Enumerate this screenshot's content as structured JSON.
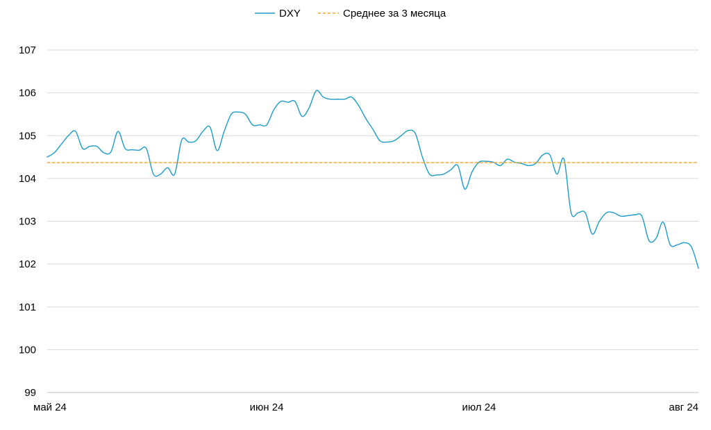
{
  "chart_data": {
    "type": "line",
    "title": "",
    "xlabel": "",
    "ylabel": "",
    "ylim": [
      99,
      107
    ],
    "y_ticks": [
      "99",
      "100",
      "101",
      "102",
      "103",
      "104",
      "105",
      "106",
      "107"
    ],
    "x_range": [
      "2024-05-01",
      "2024-08-01"
    ],
    "x_ticks": [
      {
        "date": "2024-05-01",
        "label": "май 24"
      },
      {
        "date": "2024-06-01",
        "label": "июн 24"
      },
      {
        "date": "2024-07-01",
        "label": "июл 24"
      },
      {
        "date": "2024-08-01",
        "label": "авг 24"
      }
    ],
    "grid": "horizontal",
    "legend": "top-center",
    "series": [
      {
        "name": "DXY",
        "color": "#1A9BC9",
        "style": "solid",
        "points": [
          [
            "2024-05-01",
            104.5
          ],
          [
            "2024-05-02",
            104.6
          ],
          [
            "2024-05-03",
            104.8
          ],
          [
            "2024-05-04",
            105.0
          ],
          [
            "2024-05-05",
            105.1
          ],
          [
            "2024-05-06",
            104.7
          ],
          [
            "2024-05-07",
            104.75
          ],
          [
            "2024-05-08",
            104.75
          ],
          [
            "2024-05-09",
            104.6
          ],
          [
            "2024-05-10",
            104.62
          ],
          [
            "2024-05-11",
            105.1
          ],
          [
            "2024-05-12",
            104.7
          ],
          [
            "2024-05-13",
            104.67
          ],
          [
            "2024-05-14",
            104.66
          ],
          [
            "2024-05-15",
            104.7
          ],
          [
            "2024-05-16",
            104.1
          ],
          [
            "2024-05-17",
            104.1
          ],
          [
            "2024-05-18",
            104.25
          ],
          [
            "2024-05-19",
            104.1
          ],
          [
            "2024-05-20",
            104.9
          ],
          [
            "2024-05-21",
            104.85
          ],
          [
            "2024-05-22",
            104.88
          ],
          [
            "2024-05-23",
            105.1
          ],
          [
            "2024-05-24",
            105.2
          ],
          [
            "2024-05-25",
            104.65
          ],
          [
            "2024-05-26",
            105.1
          ],
          [
            "2024-05-27",
            105.5
          ],
          [
            "2024-05-28",
            105.55
          ],
          [
            "2024-05-29",
            105.5
          ],
          [
            "2024-05-30",
            105.25
          ],
          [
            "2024-05-31",
            105.25
          ],
          [
            "2024-06-01",
            105.25
          ],
          [
            "2024-06-02",
            105.6
          ],
          [
            "2024-06-03",
            105.8
          ],
          [
            "2024-06-04",
            105.78
          ],
          [
            "2024-06-05",
            105.8
          ],
          [
            "2024-06-06",
            105.45
          ],
          [
            "2024-06-07",
            105.65
          ],
          [
            "2024-06-08",
            106.05
          ],
          [
            "2024-06-09",
            105.9
          ],
          [
            "2024-06-10",
            105.85
          ],
          [
            "2024-06-11",
            105.85
          ],
          [
            "2024-06-12",
            105.85
          ],
          [
            "2024-06-13",
            105.9
          ],
          [
            "2024-06-14",
            105.7
          ],
          [
            "2024-06-15",
            105.4
          ],
          [
            "2024-06-16",
            105.15
          ],
          [
            "2024-06-17",
            104.88
          ],
          [
            "2024-06-18",
            104.85
          ],
          [
            "2024-06-19",
            104.88
          ],
          [
            "2024-06-20",
            105.0
          ],
          [
            "2024-06-21",
            105.12
          ],
          [
            "2024-06-22",
            105.05
          ],
          [
            "2024-06-23",
            104.5
          ],
          [
            "2024-06-24",
            104.1
          ],
          [
            "2024-06-25",
            104.08
          ],
          [
            "2024-06-26",
            104.1
          ],
          [
            "2024-06-27",
            104.2
          ],
          [
            "2024-06-28",
            104.3
          ],
          [
            "2024-06-29",
            103.75
          ],
          [
            "2024-06-30",
            104.15
          ],
          [
            "2024-07-01",
            104.38
          ],
          [
            "2024-07-02",
            104.4
          ],
          [
            "2024-07-03",
            104.38
          ],
          [
            "2024-07-04",
            104.3
          ],
          [
            "2024-07-05",
            104.45
          ],
          [
            "2024-07-06",
            104.38
          ],
          [
            "2024-07-07",
            104.35
          ],
          [
            "2024-07-08",
            104.3
          ],
          [
            "2024-07-09",
            104.35
          ],
          [
            "2024-07-10",
            104.55
          ],
          [
            "2024-07-11",
            104.55
          ],
          [
            "2024-07-12",
            104.1
          ],
          [
            "2024-07-13",
            104.45
          ],
          [
            "2024-07-14",
            103.2
          ],
          [
            "2024-07-15",
            103.2
          ],
          [
            "2024-07-16",
            103.2
          ],
          [
            "2024-07-17",
            102.7
          ],
          [
            "2024-07-18",
            103.0
          ],
          [
            "2024-07-19",
            103.2
          ],
          [
            "2024-07-20",
            103.2
          ],
          [
            "2024-07-21",
            103.12
          ],
          [
            "2024-07-22",
            103.13
          ],
          [
            "2024-07-23",
            103.15
          ],
          [
            "2024-07-24",
            103.12
          ],
          [
            "2024-07-25",
            102.55
          ],
          [
            "2024-07-26",
            102.6
          ],
          [
            "2024-07-27",
            102.98
          ],
          [
            "2024-07-28",
            102.45
          ],
          [
            "2024-07-29",
            102.45
          ],
          [
            "2024-07-30",
            102.5
          ],
          [
            "2024-07-31",
            102.4
          ],
          [
            "2024-08-01",
            101.9
          ]
        ]
      },
      {
        "name": "Среднее за 3 месяца",
        "color": "#F2A32C",
        "style": "dashed",
        "points": [
          [
            "2024-05-01",
            104.37
          ],
          [
            "2024-08-01",
            104.37
          ]
        ]
      }
    ]
  }
}
